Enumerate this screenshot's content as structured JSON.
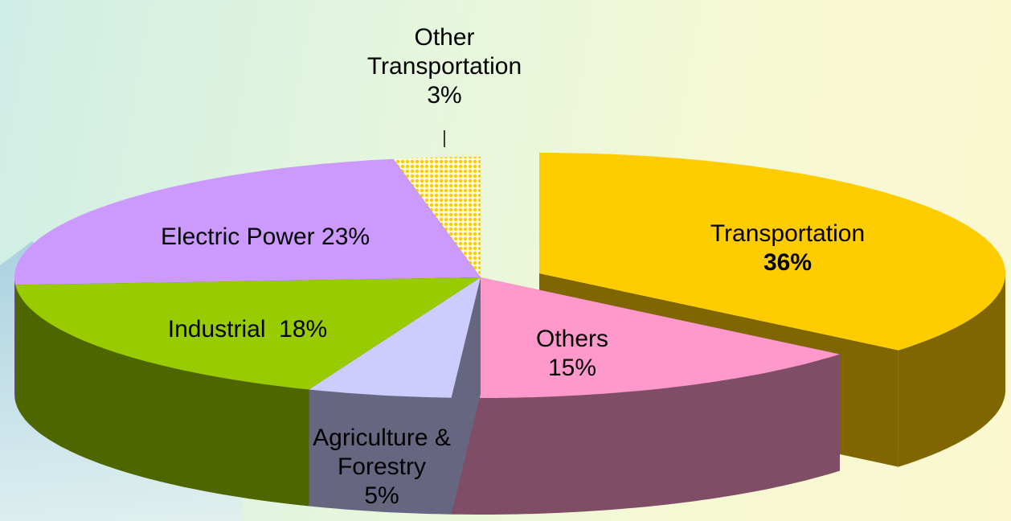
{
  "chart_data": {
    "type": "pie",
    "categories": [
      "Transportation",
      "Others",
      "Agriculture & Forestry",
      "Industrial",
      "Electric Power",
      "Other Transportation"
    ],
    "values": [
      36,
      15,
      5,
      18,
      23,
      3
    ],
    "value_labels": [
      "36%",
      "15%",
      "5%",
      "18%",
      "23%",
      "3%"
    ],
    "colors": [
      "#FFCC00",
      "#FF99CC",
      "#CCCCFF",
      "#99CC00",
      "#CC99FF",
      "#FFCC00"
    ],
    "fill_patterns": [
      null,
      null,
      null,
      null,
      null,
      "dots"
    ],
    "three_d": true
  }
}
